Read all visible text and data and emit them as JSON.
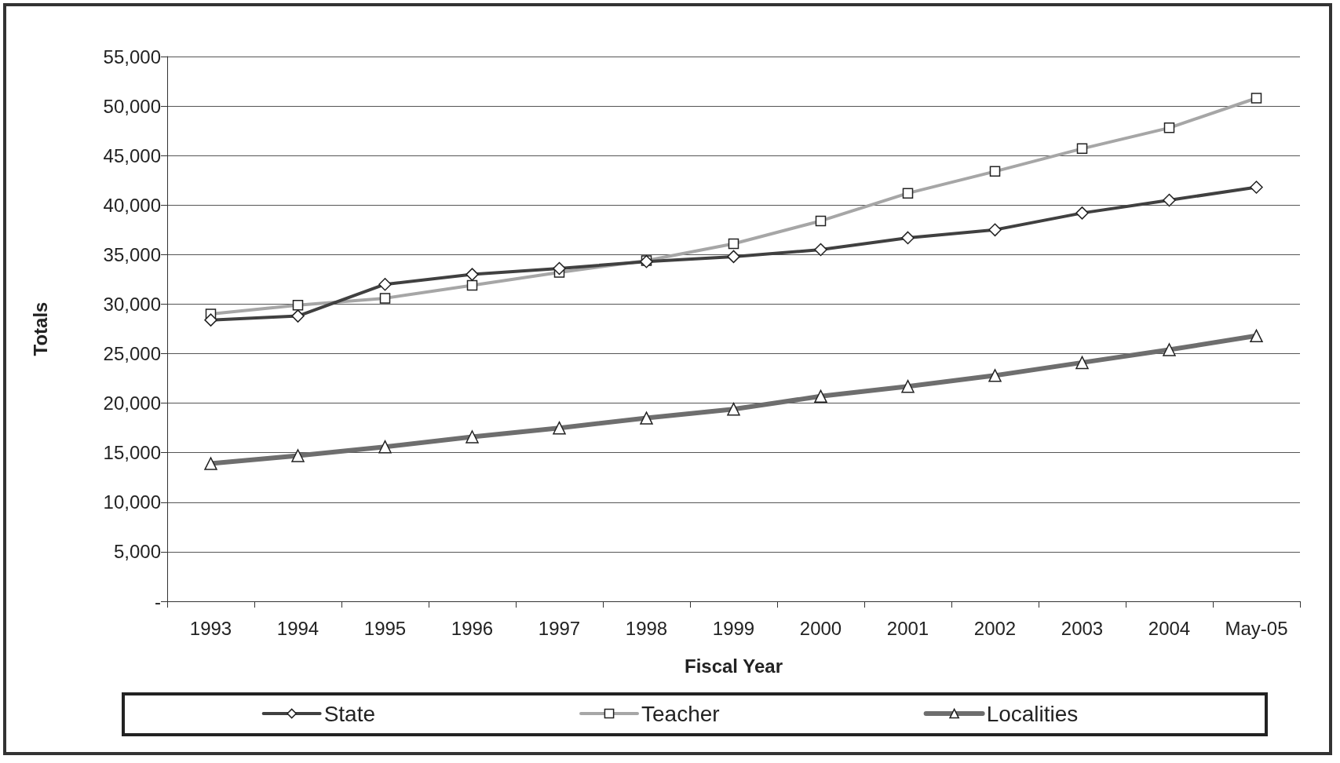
{
  "chart_data": {
    "type": "line",
    "xlabel": "Fiscal Year",
    "ylabel": "Totals",
    "categories": [
      "1993",
      "1994",
      "1995",
      "1996",
      "1997",
      "1998",
      "1999",
      "2000",
      "2001",
      "2002",
      "2003",
      "2004",
      "May-05"
    ],
    "series": [
      {
        "name": "State",
        "color": "#404040",
        "marker": "diamond",
        "values": [
          28400,
          28800,
          32000,
          33000,
          33600,
          34300,
          34800,
          35500,
          36700,
          37500,
          39200,
          40500,
          41800
        ]
      },
      {
        "name": "Teacher",
        "color": "#a6a6a6",
        "marker": "square",
        "values": [
          29000,
          29900,
          30600,
          31900,
          33200,
          34400,
          36100,
          38400,
          41200,
          43400,
          45700,
          47800,
          50800
        ]
      },
      {
        "name": "Localities",
        "color": "#6e6e6e",
        "marker": "triangle",
        "values": [
          13900,
          14700,
          15600,
          16600,
          17500,
          18500,
          19400,
          20700,
          21700,
          22800,
          24100,
          25400,
          26800
        ]
      }
    ],
    "ylim": [
      0,
      55000
    ],
    "yticks": [
      {
        "value": 0,
        "label": "-"
      },
      {
        "value": 5000,
        "label": "5,000"
      },
      {
        "value": 10000,
        "label": "10,000"
      },
      {
        "value": 15000,
        "label": "15,000"
      },
      {
        "value": 20000,
        "label": "20,000"
      },
      {
        "value": 25000,
        "label": "25,000"
      },
      {
        "value": 30000,
        "label": "30,000"
      },
      {
        "value": 35000,
        "label": "35,000"
      },
      {
        "value": 40000,
        "label": "40,000"
      },
      {
        "value": 45000,
        "label": "45,000"
      },
      {
        "value": 50000,
        "label": "50,000"
      },
      {
        "value": 55000,
        "label": "55,000"
      }
    ],
    "grid": "y",
    "legend": "bottom",
    "line_style": "solid"
  }
}
